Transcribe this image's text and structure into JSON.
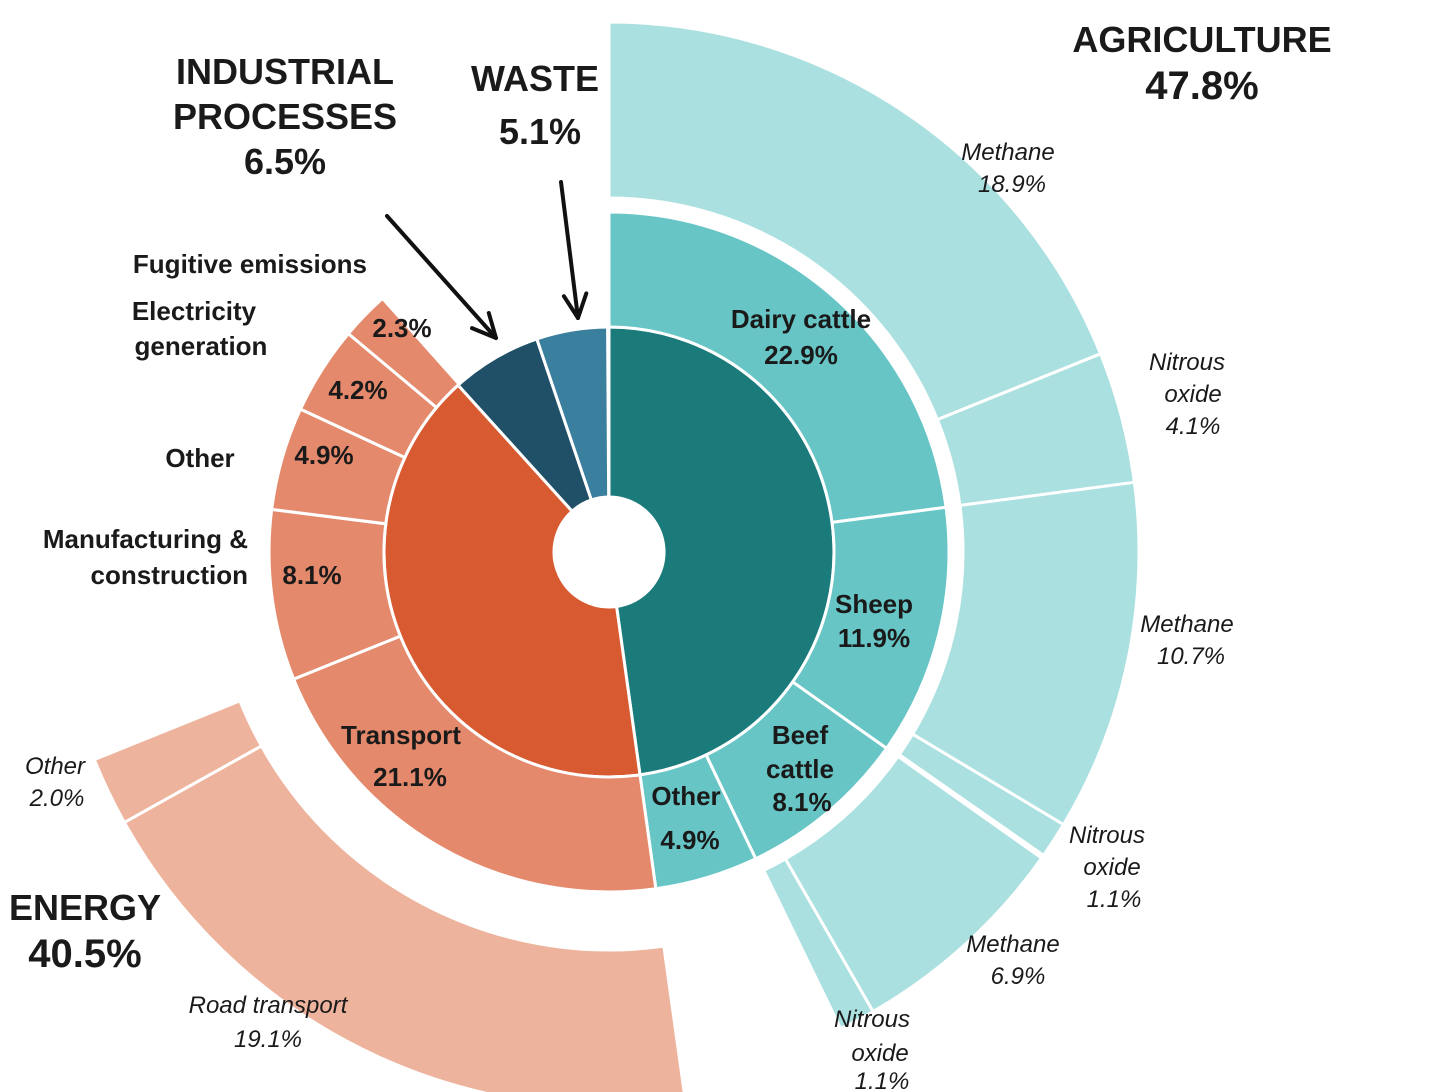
{
  "chart_data": {
    "type": "sunburst",
    "title": "",
    "sectors": [
      {
        "name": "AGRICULTURE",
        "value": 47.8,
        "label": "47.8%",
        "color": "#1b7b7b",
        "categories": [
          {
            "name": "Dairy cattle",
            "value": 22.9,
            "label": "22.9%",
            "color": "#67c5c6",
            "gases": [
              {
                "name": "Methane",
                "value": 18.9,
                "label": "18.9%"
              },
              {
                "name": "Nitrous oxide",
                "value": 4.1,
                "label": "4.1%"
              }
            ]
          },
          {
            "name": "Sheep",
            "value": 11.9,
            "label": "11.9%",
            "color": "#67c5c6",
            "gases": [
              {
                "name": "Methane",
                "value": 10.7,
                "label": "10.7%"
              },
              {
                "name": "Nitrous oxide",
                "value": 1.1,
                "label": "1.1%"
              }
            ]
          },
          {
            "name": "Beef cattle",
            "value": 8.1,
            "label": "8.1%",
            "color": "#67c5c6",
            "gases": [
              {
                "name": "Methane",
                "value": 6.9,
                "label": "6.9%"
              },
              {
                "name": "Nitrous oxide",
                "value": 1.1,
                "label": "1.1%"
              }
            ]
          },
          {
            "name": "Other",
            "value": 4.9,
            "label": "4.9%",
            "color": "#67c5c6",
            "gases": []
          }
        ]
      },
      {
        "name": "ENERGY",
        "value": 40.5,
        "label": "40.5%",
        "color": "#d85a31",
        "categories": [
          {
            "name": "Transport",
            "value": 21.1,
            "label": "21.1%",
            "color": "#e4896b",
            "gases": [
              {
                "name": "Road transport",
                "value": 19.1,
                "label": "19.1%"
              },
              {
                "name": "Other",
                "value": 2.0,
                "label": "2.0%"
              }
            ]
          },
          {
            "name": "Manufacturing & construction",
            "value": 8.1,
            "label": "8.1%",
            "color": "#e4896b",
            "gases": []
          },
          {
            "name": "Other",
            "value": 4.9,
            "label": "4.9%",
            "color": "#e4896b",
            "gases": []
          },
          {
            "name": "Electricity generation",
            "value": 4.2,
            "label": "4.2%",
            "color": "#e4896b",
            "gases": []
          },
          {
            "name": "Fugitive emissions",
            "value": 2.3,
            "label": "2.3%",
            "color": "#e4896b",
            "gases": []
          }
        ]
      },
      {
        "name": "INDUSTRIAL PROCESSES",
        "value": 6.5,
        "label": "6.5%",
        "color": "#1f5068",
        "categories": []
      },
      {
        "name": "WASTE",
        "value": 5.1,
        "label": "5.1%",
        "color": "#3a7f9d",
        "categories": []
      }
    ],
    "colors": {
      "agri_outer": "#abe0e0",
      "energy_outer": "#eeb39c"
    }
  },
  "labels": {
    "agri_title": "AGRICULTURE",
    "agri_pct": "47.8%",
    "energy_title": "ENERGY",
    "energy_pct": "40.5%",
    "ind_title_1": "INDUSTRIAL",
    "ind_title_2": "PROCESSES",
    "ind_pct": "6.5%",
    "waste_title": "WASTE",
    "waste_pct": "5.1%",
    "dairy_name": "Dairy cattle",
    "dairy_pct": "22.9%",
    "sheep_name": "Sheep",
    "sheep_pct": "11.9%",
    "beef_name_1": "Beef",
    "beef_name_2": "cattle",
    "beef_pct": "8.1%",
    "agri_other_name": "Other",
    "agri_other_pct": "4.9%",
    "transport_name": "Transport",
    "transport_pct": "21.1%",
    "manuf_name_1": "Manufacturing &",
    "manuf_name_2": "construction",
    "manuf_pct": "8.1%",
    "energy_other_name": "Other",
    "energy_other_pct": "4.9%",
    "elec_name_1": "Electricity",
    "elec_name_2": "generation",
    "elec_pct": "4.2%",
    "fugitive_name": "Fugitive emissions",
    "fugitive_pct": "2.3%",
    "dairy_methane_name": "Methane",
    "dairy_methane_pct": "18.9%",
    "dairy_n2o_name_1": "Nitrous",
    "dairy_n2o_name_2": "oxide",
    "dairy_n2o_pct": "4.1%",
    "sheep_methane_name": "Methane",
    "sheep_methane_pct": "10.7%",
    "sheep_n2o_name_1": "Nitrous",
    "sheep_n2o_name_2": "oxide",
    "sheep_n2o_pct": "1.1%",
    "beef_methane_name": "Methane",
    "beef_methane_pct": "6.9%",
    "beef_n2o_name_1": "Nitrous",
    "beef_n2o_name_2": "oxide",
    "beef_n2o_pct": "1.1%",
    "road_name": "Road transport",
    "road_pct": "19.1%",
    "transport_other_name": "Other",
    "transport_other_pct": "2.0%"
  }
}
